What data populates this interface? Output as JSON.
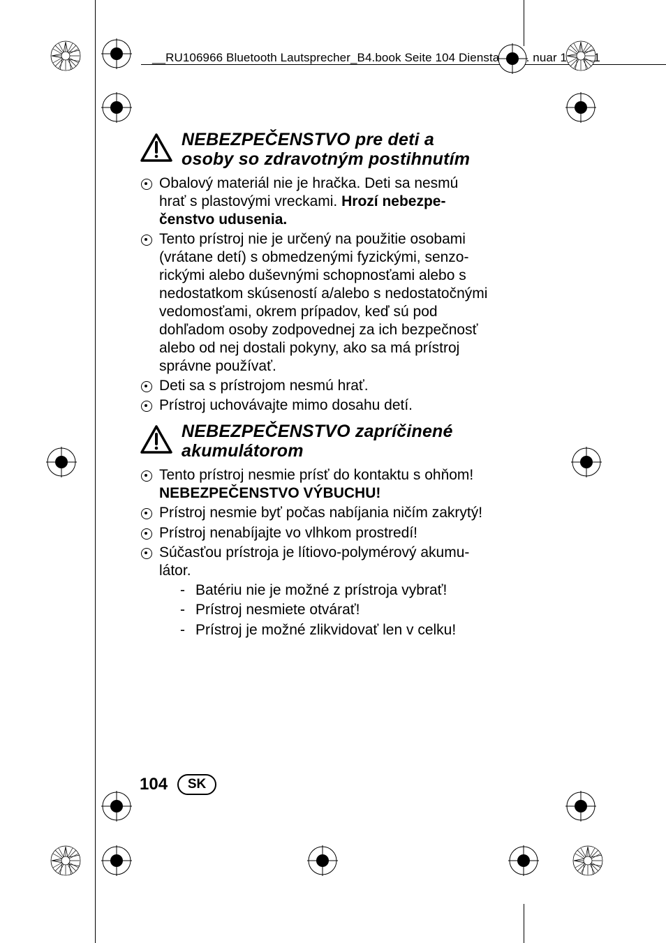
{
  "header": {
    "text": "__RU106966 Bluetooth Lautsprecher_B4.book  Seite 104  Dienstag, 13.     nuar          10:31  1"
  },
  "sections": [
    {
      "title": "NEBEZPEČENSTVO pre deti a osoby so zdravotným postihnutím",
      "bullets": [
        {
          "html": "Obalový materiál nie je hračka. Deti sa nesmú hrať s plastovými vreckami. <span class=\"bold\">Hrozí nebezpe­čenstvo udusenia.</span>"
        },
        {
          "html": "Tento prístroj nie je určený na použitie osobami (vrátane detí) s obmedzenými fyzickými, senzo­rickými alebo duševnými schopnosťami alebo s nedostatkom skúseností a/alebo s nedostatočnými vedomosťami, okrem prípa­dov, keď sú pod dohľadom osoby zodpovednej za ich bezpečnosť alebo od nej dostali pokyny, ako sa má prístroj správne používať."
        },
        {
          "html": "Deti sa s prístrojom nesmú hrať."
        },
        {
          "html": "Prístroj uchovávajte mimo dosahu detí."
        }
      ]
    },
    {
      "title": "NEBEZPEČENSTVO zapríčinené akumulátorom",
      "bullets": [
        {
          "html": "Tento prístroj nesmie prísť do kontaktu s ohňom! <span class=\"bold\">NEBEZPEČENSTVO VÝBUCHU!</span>"
        },
        {
          "html": "Prístroj nesmie byť počas nabíjania ničím za­krytý!"
        },
        {
          "html": "Prístroj nenabíjajte vo vlhkom prostredí!"
        },
        {
          "html": "Súčasťou prístroja je lítiovo-polymérový akumu­látor.",
          "subs": [
            "Batériu nie je možné z prístroja vybrať!",
            "Prístroj nesmiete otvárať!",
            "Prístroj je možné zlikvidovať len v celku!"
          ]
        }
      ]
    }
  ],
  "footer": {
    "page": "104",
    "lang": "SK"
  },
  "style": {
    "bg": "#ffffff",
    "text_color": "#000000",
    "body_fontsize": 21,
    "heading_fontsize": 25,
    "page_fontsize": 24,
    "lineheight": 1.24
  }
}
